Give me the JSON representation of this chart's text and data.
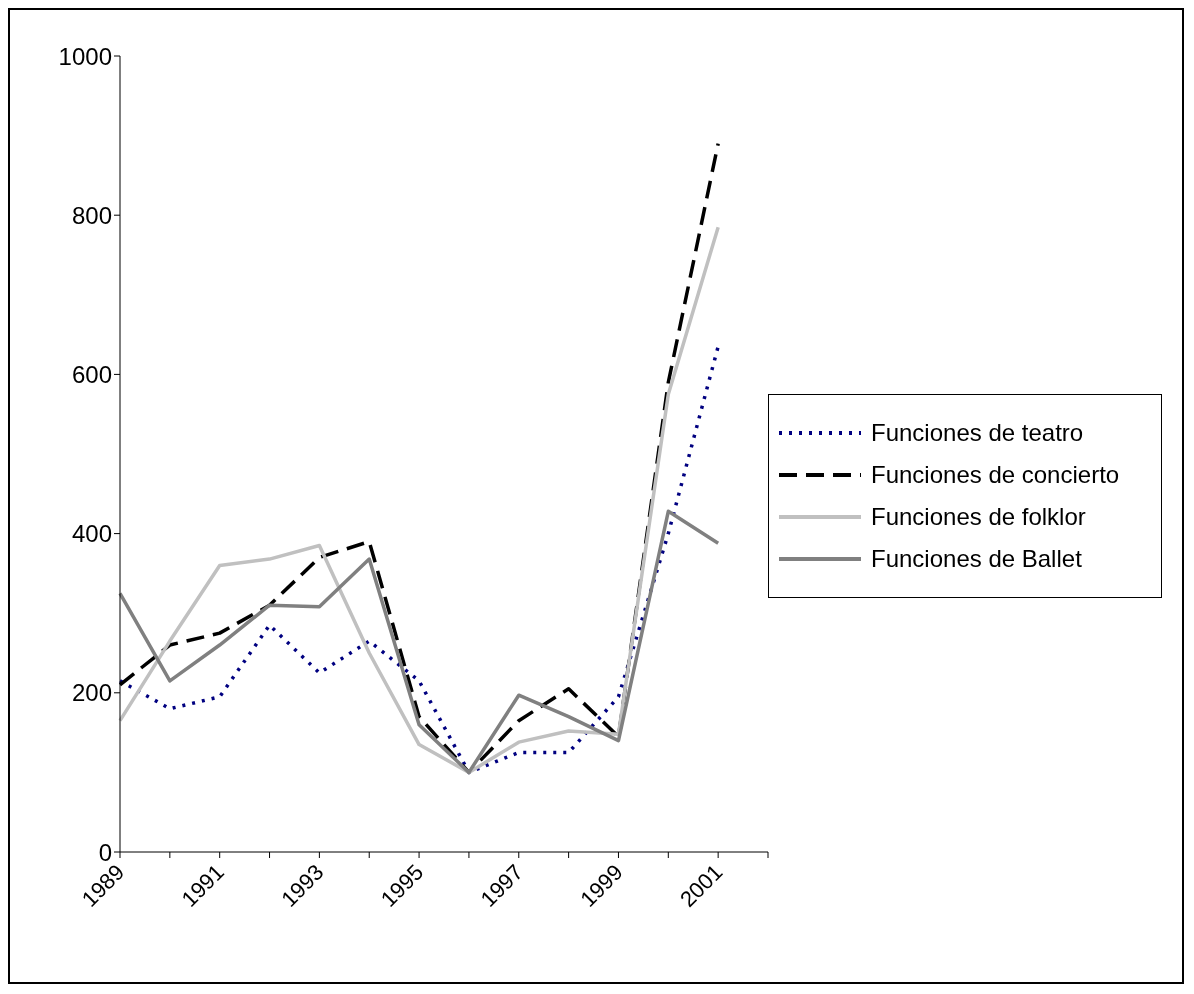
{
  "chart_data": {
    "type": "line",
    "categories": [
      "1989",
      null,
      "1991",
      null,
      "1993",
      null,
      "1995",
      null,
      "1997",
      null,
      "1999",
      null,
      "2001",
      null
    ],
    "series": [
      {
        "name": "Funciones de teatro",
        "color": "#000080",
        "line_style": "dotted",
        "values": [
          215,
          180,
          195,
          285,
          225,
          265,
          215,
          100,
          125,
          125,
          195,
          400,
          635,
          null
        ]
      },
      {
        "name": "Funciones de concierto",
        "color": "#000000",
        "line_style": "dashed",
        "values": [
          210,
          260,
          275,
          310,
          370,
          390,
          170,
          100,
          165,
          205,
          145,
          590,
          890,
          null
        ]
      },
      {
        "name": "Funciones de folklor",
        "color": "#c0c0c0",
        "line_style": "solid",
        "values": [
          165,
          265,
          360,
          368,
          385,
          250,
          135,
          100,
          138,
          152,
          148,
          575,
          785,
          null
        ]
      },
      {
        "name": "Funciones de Ballet",
        "color": "#808080",
        "line_style": "solid",
        "values": [
          325,
          215,
          260,
          310,
          308,
          368,
          160,
          100,
          197,
          170,
          140,
          428,
          388,
          null
        ]
      }
    ],
    "ylim": [
      0,
      1000
    ],
    "yticks": [
      0,
      200,
      400,
      600,
      800,
      1000
    ],
    "grid": false,
    "legend": "right",
    "marker": "none"
  }
}
